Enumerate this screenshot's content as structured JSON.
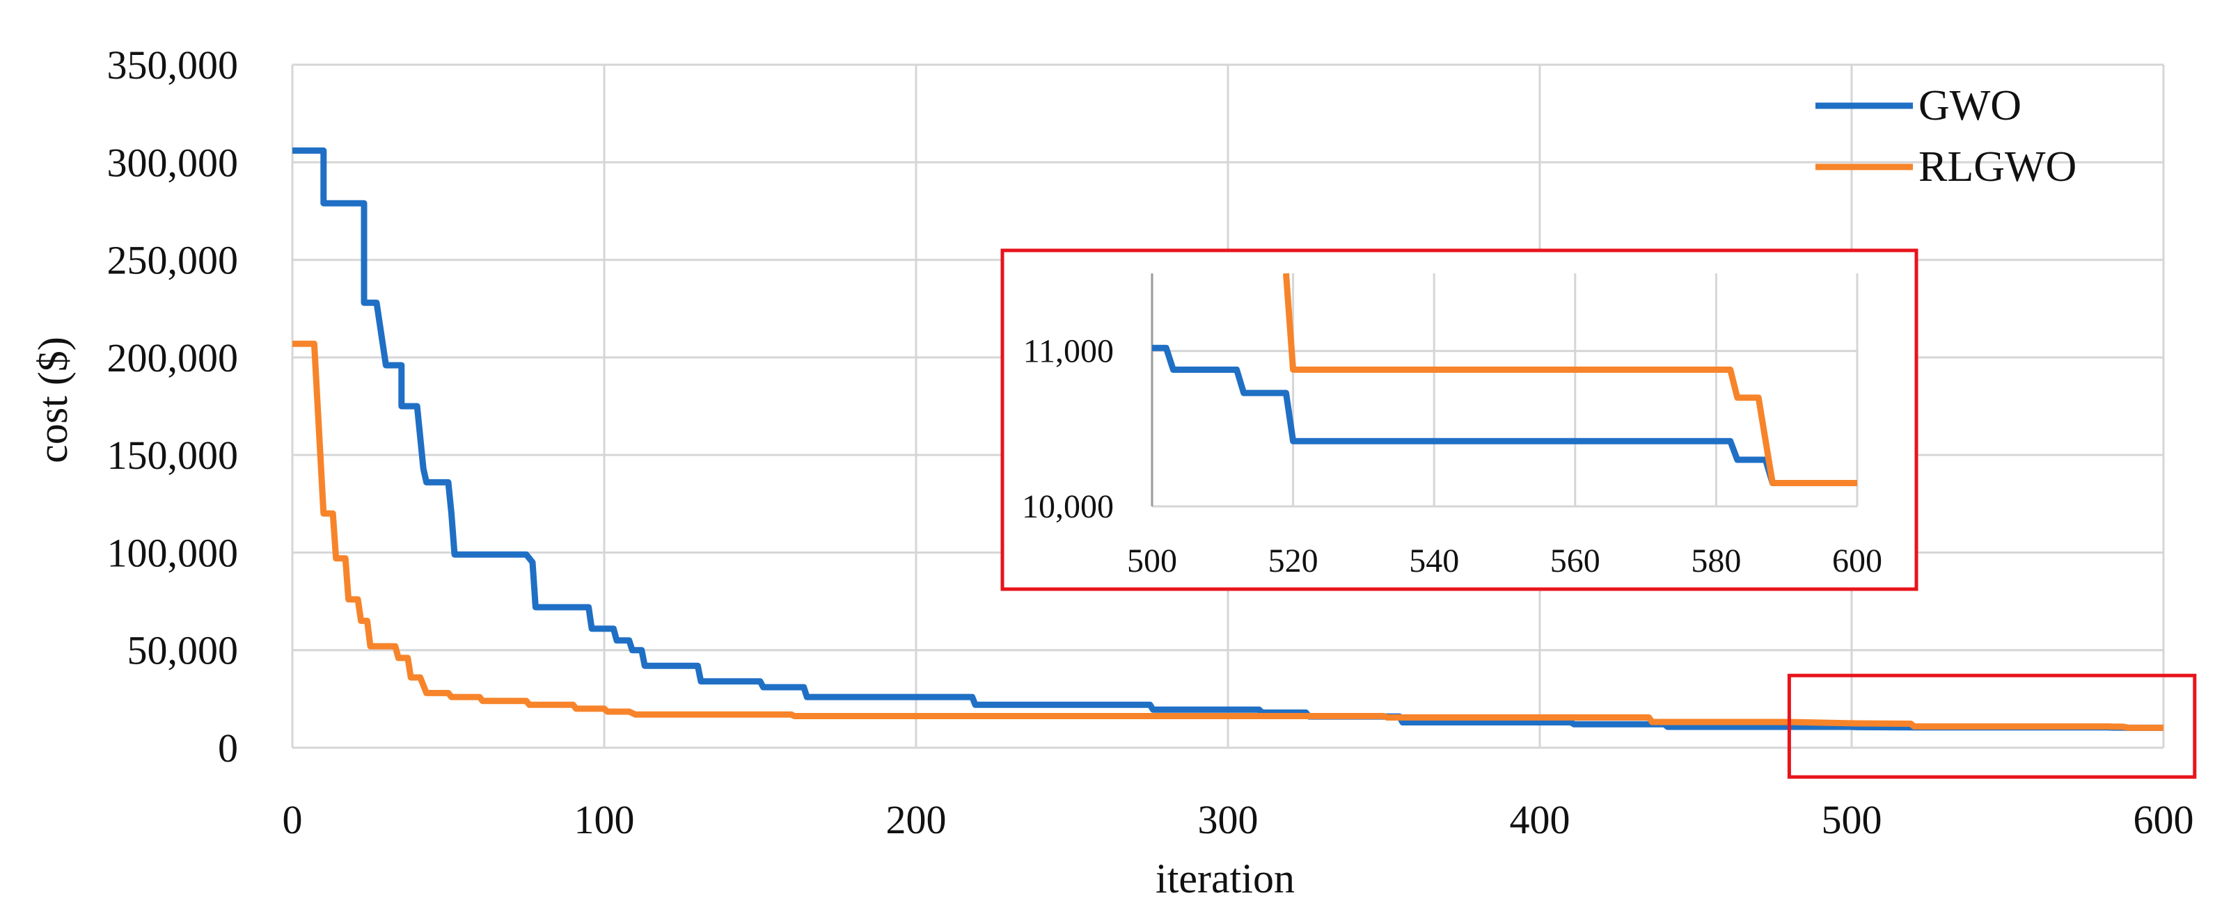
{
  "colors": {
    "gwo": "#1f6fc5",
    "rlgwo": "#f7842a",
    "grid": "#d6d6d6",
    "highlight": "#e8141b"
  },
  "chart_data": [
    {
      "type": "line",
      "title": "",
      "xlabel": "iteration",
      "ylabel": "cost ($)",
      "xlim": [
        0,
        600
      ],
      "ylim": [
        0,
        350000
      ],
      "x_ticks": [
        {
          "value": 0,
          "label": "0"
        },
        {
          "value": 100,
          "label": "100"
        },
        {
          "value": 200,
          "label": "200"
        },
        {
          "value": 300,
          "label": "300"
        },
        {
          "value": 400,
          "label": "400"
        },
        {
          "value": 500,
          "label": "500"
        },
        {
          "value": 600,
          "label": "600"
        }
      ],
      "y_ticks": [
        {
          "value": 0,
          "label": "0"
        },
        {
          "value": 50000,
          "label": "50,000"
        },
        {
          "value": 100000,
          "label": "100,000"
        },
        {
          "value": 150000,
          "label": "150,000"
        },
        {
          "value": 200000,
          "label": "200,000"
        },
        {
          "value": 250000,
          "label": "250,000"
        },
        {
          "value": 300000,
          "label": "300,000"
        },
        {
          "value": 350000,
          "label": "350,000"
        }
      ],
      "grid": true,
      "legend": "top-right",
      "highlight_region": {
        "x": [
          480,
          610
        ],
        "y": [
          -15000,
          37000
        ]
      },
      "series": [
        {
          "name": "GWO",
          "color_key": "gwo",
          "points": [
            [
              0,
              306000
            ],
            [
              10,
              306000
            ],
            [
              10,
              279000
            ],
            [
              23,
              279000
            ],
            [
              23,
              228000
            ],
            [
              27,
              228000
            ],
            [
              30,
              196000
            ],
            [
              35,
              196000
            ],
            [
              35,
              175000
            ],
            [
              38,
              175000
            ],
            [
              40,
              175000
            ],
            [
              42,
              143000
            ],
            [
              43,
              136000
            ],
            [
              50,
              136000
            ],
            [
              51,
              120000
            ],
            [
              52,
              99000
            ],
            [
              75,
              99000
            ],
            [
              77,
              95000
            ],
            [
              78,
              72000
            ],
            [
              95,
              72000
            ],
            [
              96,
              61000
            ],
            [
              103,
              61000
            ],
            [
              104,
              55000
            ],
            [
              108,
              55000
            ],
            [
              109,
              50000
            ],
            [
              112,
              50000
            ],
            [
              113,
              42000
            ],
            [
              130,
              42000
            ],
            [
              131,
              34000
            ],
            [
              150,
              34000
            ],
            [
              151,
              31000
            ],
            [
              164,
              31000
            ],
            [
              165,
              26000
            ],
            [
              218,
              26000
            ],
            [
              219,
              22000
            ],
            [
              275,
              22000
            ],
            [
              276,
              19500
            ],
            [
              310,
              19500
            ],
            [
              311,
              18000
            ],
            [
              325,
              18000
            ],
            [
              326,
              16000
            ],
            [
              355,
              16000
            ],
            [
              356,
              13000
            ],
            [
              410,
              13000
            ],
            [
              411,
              12000
            ],
            [
              440,
              12000
            ],
            [
              441,
              10700
            ],
            [
              500,
              10700
            ],
            [
              501,
              10600
            ],
            [
              520,
              10400
            ],
            [
              582,
              10400
            ],
            [
              584,
              10300
            ],
            [
              587,
              10300
            ],
            [
              589,
              10200
            ],
            [
              600,
              10200
            ]
          ]
        },
        {
          "name": "RLGWO",
          "color_key": "rlgwo",
          "points": [
            [
              0,
              207000
            ],
            [
              7,
              207000
            ],
            [
              10,
              120000
            ],
            [
              13,
              120000
            ],
            [
              14,
              97000
            ],
            [
              17,
              97000
            ],
            [
              18,
              76000
            ],
            [
              21,
              76000
            ],
            [
              22,
              65000
            ],
            [
              24,
              65000
            ],
            [
              25,
              52000
            ],
            [
              33,
              52000
            ],
            [
              34,
              46000
            ],
            [
              37,
              46000
            ],
            [
              38,
              36000
            ],
            [
              41,
              36000
            ],
            [
              43,
              28000
            ],
            [
              50,
              28000
            ],
            [
              51,
              26000
            ],
            [
              60,
              26000
            ],
            [
              61,
              24000
            ],
            [
              75,
              24000
            ],
            [
              76,
              22000
            ],
            [
              90,
              22000
            ],
            [
              91,
              20000
            ],
            [
              100,
              20000
            ],
            [
              101,
              18500
            ],
            [
              108,
              18500
            ],
            [
              110,
              17000
            ],
            [
              160,
              17000
            ],
            [
              161,
              16200
            ],
            [
              350,
              16200
            ],
            [
              351,
              15500
            ],
            [
              435,
              15500
            ],
            [
              436,
              13200
            ],
            [
              480,
              13200
            ],
            [
              500,
              12500
            ],
            [
              519,
              12300
            ],
            [
              520,
              10900
            ],
            [
              582,
              10900
            ],
            [
              584,
              10750
            ],
            [
              587,
              10750
            ],
            [
              589,
              10200
            ],
            [
              600,
              10200
            ]
          ]
        }
      ]
    },
    {
      "type": "line",
      "title": "",
      "xlabel": "",
      "ylabel": "",
      "xlim": [
        500,
        600
      ],
      "ylim": [
        10000,
        11500
      ],
      "x_ticks": [
        {
          "value": 500,
          "label": "500"
        },
        {
          "value": 520,
          "label": "520"
        },
        {
          "value": 540,
          "label": "540"
        },
        {
          "value": 560,
          "label": "560"
        },
        {
          "value": 580,
          "label": "580"
        },
        {
          "value": 600,
          "label": "600"
        }
      ],
      "y_ticks": [
        {
          "value": 10000,
          "label": "10,000"
        },
        {
          "value": 11000,
          "label": "11,000"
        }
      ],
      "grid": true,
      "legend": "none",
      "series": [
        {
          "color_key": "gwo",
          "points": [
            [
              500,
              11020
            ],
            [
              502,
              11020
            ],
            [
              503,
              10880
            ],
            [
              512,
              10880
            ],
            [
              513,
              10730
            ],
            [
              519,
              10730
            ],
            [
              520,
              10420
            ],
            [
              582,
              10420
            ],
            [
              583,
              10300
            ],
            [
              587,
              10300
            ],
            [
              588,
              10150
            ],
            [
              600,
              10150
            ]
          ]
        },
        {
          "color_key": "rlgwo",
          "points": [
            [
              519,
              11500
            ],
            [
              520,
              10880
            ],
            [
              582,
              10880
            ],
            [
              583,
              10700
            ],
            [
              586,
              10700
            ],
            [
              588,
              10150
            ],
            [
              600,
              10150
            ]
          ]
        }
      ]
    }
  ]
}
